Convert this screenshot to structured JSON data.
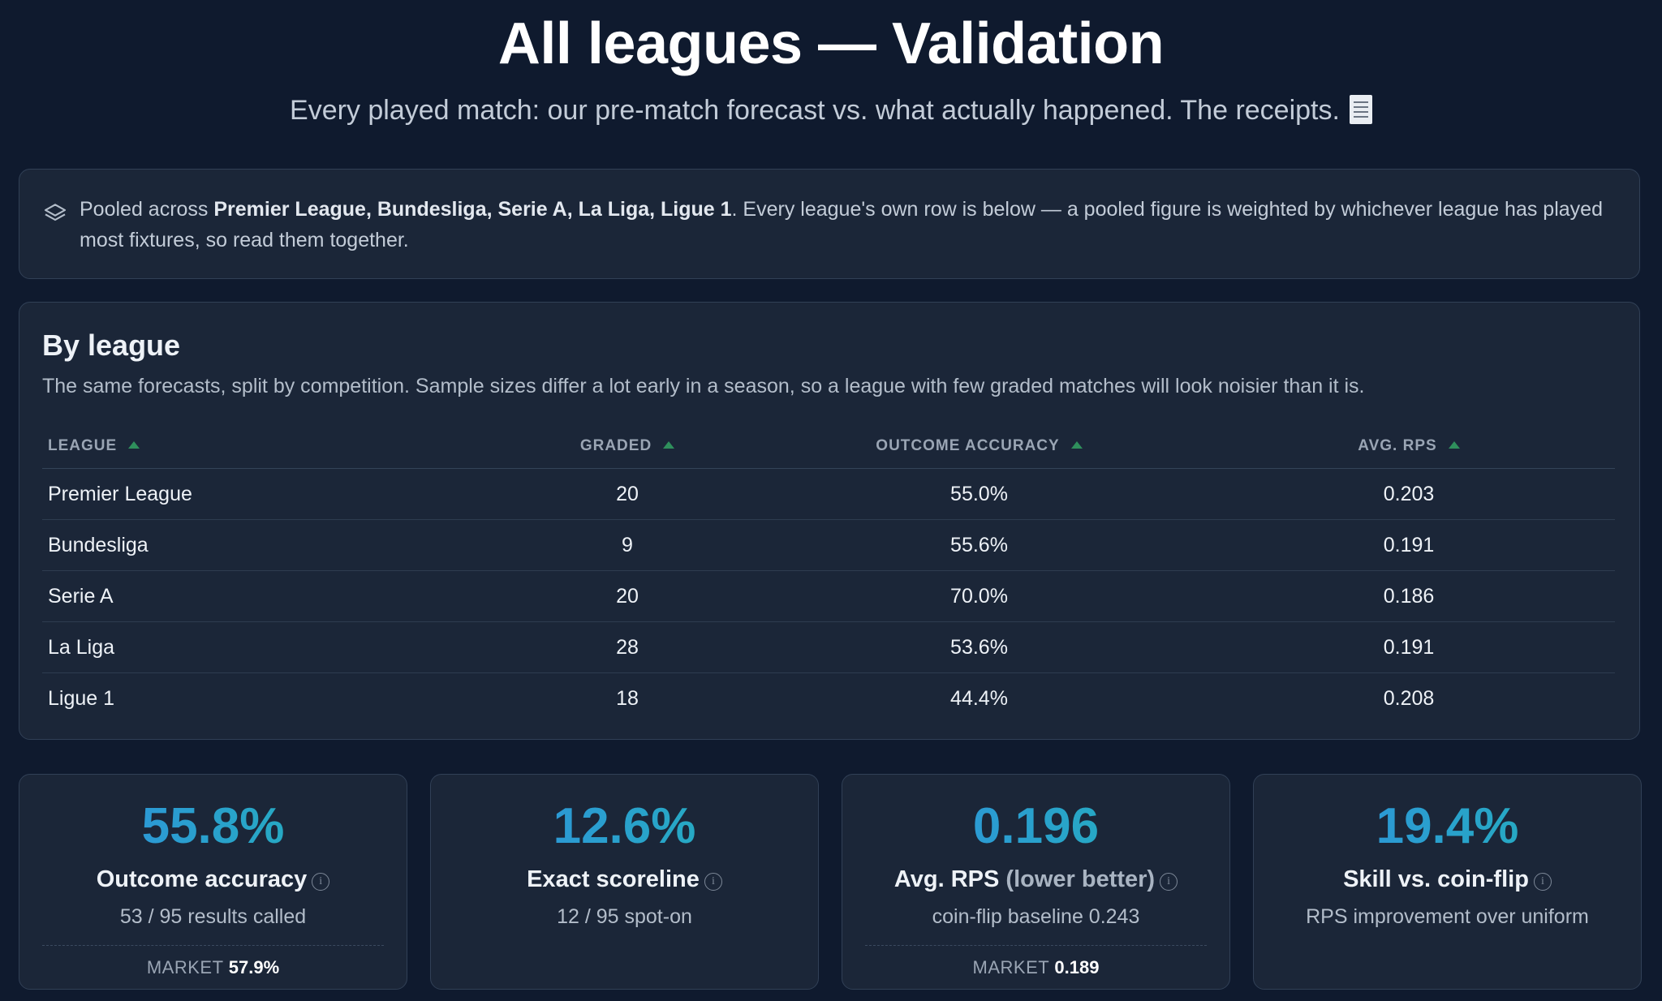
{
  "header": {
    "title": "All leagues — Validation",
    "subtitle": "Every played match: our pre-match forecast vs. what actually happened. The receipts."
  },
  "info": {
    "prefix": "Pooled across ",
    "leagues_bold": "Premier League, Bundesliga, Serie A, La Liga, Ligue 1",
    "suffix": ". Every league's own row is below — a pooled figure is weighted by whichever league has played most fixtures, so read them together.",
    "icon": "layers-icon"
  },
  "by_league": {
    "title": "By league",
    "description": "The same forecasts, split by competition. Sample sizes differ a lot early in a season, so a league with few graded matches will look noisier than it is.",
    "columns": [
      "LEAGUE",
      "GRADED",
      "OUTCOME ACCURACY",
      "AVG. RPS"
    ],
    "rows": [
      [
        "Premier League",
        "20",
        "55.0%",
        "0.203"
      ],
      [
        "Bundesliga",
        "9",
        "55.6%",
        "0.191"
      ],
      [
        "Serie A",
        "20",
        "70.0%",
        "0.186"
      ],
      [
        "La Liga",
        "28",
        "53.6%",
        "0.191"
      ],
      [
        "Ligue 1",
        "18",
        "44.4%",
        "0.208"
      ]
    ]
  },
  "stats": [
    {
      "value": "55.8%",
      "label": "Outcome accuracy",
      "label_muted": "",
      "sub": "53 / 95 results called",
      "market_label": "MARKET",
      "market_value": "57.9%"
    },
    {
      "value": "12.6%",
      "label": "Exact scoreline",
      "label_muted": "",
      "sub": "12 / 95 spot-on",
      "market_label": "",
      "market_value": ""
    },
    {
      "value": "0.196",
      "label": "Avg. RPS",
      "label_muted": "(lower better)",
      "sub": "coin-flip baseline 0.243",
      "market_label": "MARKET",
      "market_value": "0.189"
    },
    {
      "value": "19.4%",
      "label": "Skill vs. coin-flip",
      "label_muted": "",
      "sub": "RPS improvement over uniform",
      "market_label": "",
      "market_value": ""
    }
  ],
  "colors": {
    "background": "#0f1a2e",
    "card": "#1b2638",
    "accent_start": "#2f8fe0",
    "accent_end": "#23b3b8",
    "sort_arrow": "#2f8f5c"
  }
}
